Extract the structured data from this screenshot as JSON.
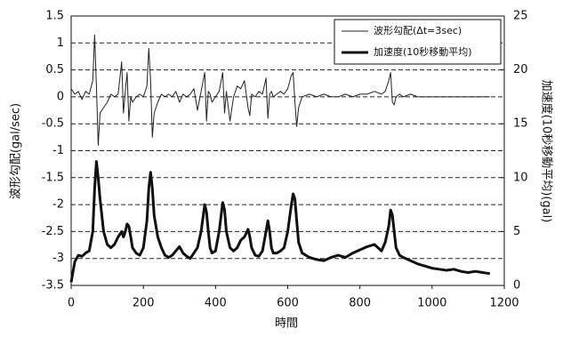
{
  "chart_data": {
    "type": "line",
    "x_label": "時間",
    "y_label": "波形勾配(gal/sec)",
    "y2_label": "加速度(10秒移動平均)(gal)",
    "x": [
      0,
      10,
      20,
      30,
      40,
      50,
      60,
      65,
      70,
      75,
      80,
      90,
      100,
      110,
      120,
      130,
      140,
      145,
      150,
      155,
      160,
      165,
      170,
      180,
      190,
      200,
      210,
      215,
      220,
      225,
      230,
      240,
      250,
      260,
      270,
      280,
      290,
      300,
      310,
      320,
      330,
      340,
      350,
      360,
      370,
      375,
      380,
      385,
      390,
      400,
      410,
      420,
      425,
      430,
      440,
      450,
      460,
      470,
      480,
      490,
      495,
      500,
      510,
      520,
      530,
      540,
      545,
      550,
      555,
      560,
      570,
      580,
      590,
      600,
      610,
      615,
      620,
      625,
      630,
      640,
      660,
      680,
      700,
      720,
      740,
      760,
      780,
      800,
      820,
      840,
      860,
      870,
      880,
      885,
      890,
      895,
      900,
      910,
      920,
      940,
      960,
      980,
      1000,
      1020,
      1040,
      1060,
      1080,
      1100,
      1120,
      1140,
      1160
    ],
    "series": [
      {
        "name": "波形勾配(Δt=3sec)",
        "color": "#222222",
        "line_width": 1,
        "axis": "y",
        "values": [
          0.15,
          0.05,
          0.1,
          -0.05,
          0.1,
          0.05,
          0.3,
          1.15,
          0.2,
          -0.9,
          -0.3,
          -0.2,
          -0.1,
          0.05,
          0,
          0.05,
          0.65,
          -0.3,
          0.1,
          0.45,
          -0.45,
          0,
          -0.1,
          0,
          0.05,
          0,
          0.2,
          0.9,
          0.3,
          -0.75,
          -0.3,
          -0.1,
          0.05,
          0,
          0.05,
          0,
          0.1,
          -0.1,
          0.05,
          0,
          0.05,
          0.15,
          -0.25,
          0.1,
          0.45,
          -0.45,
          0.1,
          0.05,
          -0.1,
          0,
          0.1,
          0.45,
          -0.3,
          0.1,
          -0.45,
          0,
          0.2,
          0.15,
          0.3,
          -0.2,
          -0.35,
          0.05,
          0,
          0.1,
          0.05,
          0.35,
          -0.4,
          0.05,
          0.1,
          0,
          0.05,
          0.1,
          0.05,
          0.15,
          0.4,
          0.45,
          -0.1,
          -0.55,
          -0.2,
          0,
          0.05,
          0,
          0.05,
          0,
          0,
          0.05,
          0,
          0.05,
          0.05,
          0.1,
          0.05,
          0.1,
          0.3,
          0.45,
          -0.1,
          -0.15,
          0,
          0.05,
          0,
          0.05,
          0,
          0,
          0,
          0,
          0,
          0,
          0,
          0,
          0,
          0,
          0
        ]
      },
      {
        "name": "加速度(10秒移動平均)",
        "color": "#111111",
        "line_width": 3,
        "axis": "y2",
        "values": [
          0.3,
          2.2,
          2.8,
          2.7,
          3,
          3.2,
          5,
          9,
          11.5,
          10,
          8,
          5,
          3.8,
          3.5,
          3.8,
          4.5,
          5,
          4.5,
          5,
          5.7,
          5.5,
          4.5,
          3.5,
          3,
          2.8,
          3.5,
          6,
          9,
          10.5,
          9,
          6.5,
          4.5,
          3.5,
          2.8,
          2.6,
          2.8,
          3.2,
          3.6,
          3,
          2.7,
          2.5,
          3,
          3.5,
          5,
          7.5,
          6.8,
          5,
          3.5,
          3,
          3.2,
          5,
          7.7,
          7,
          5,
          3.5,
          3.2,
          3.5,
          4.2,
          4.5,
          5.2,
          4.5,
          3.5,
          2.8,
          2.7,
          3.2,
          5,
          6,
          5,
          3.5,
          3,
          3,
          3.2,
          3.5,
          5,
          7.5,
          8.5,
          8,
          6,
          4,
          3,
          2.6,
          2.4,
          2.3,
          2.6,
          2.8,
          2.6,
          3,
          3.3,
          3.6,
          3.8,
          3.2,
          4,
          5.5,
          7,
          6.5,
          5,
          3.5,
          2.8,
          2.6,
          2.3,
          2,
          1.8,
          1.6,
          1.5,
          1.4,
          1.5,
          1.3,
          1.2,
          1.3,
          1.2,
          1.1
        ]
      }
    ],
    "xlim": [
      0,
      1200
    ],
    "xticks": [
      0,
      200,
      400,
      600,
      800,
      1000,
      1200
    ],
    "ylim": [
      -3.5,
      1.5
    ],
    "yticks": [
      -3.5,
      -3,
      -2.5,
      -2,
      -1.5,
      -1,
      -0.5,
      0,
      0.5,
      1,
      1.5
    ],
    "y2lim": [
      0,
      25
    ],
    "y2ticks": [
      0,
      5,
      10,
      15,
      20,
      25
    ],
    "grid": true,
    "legend": "top-right"
  }
}
